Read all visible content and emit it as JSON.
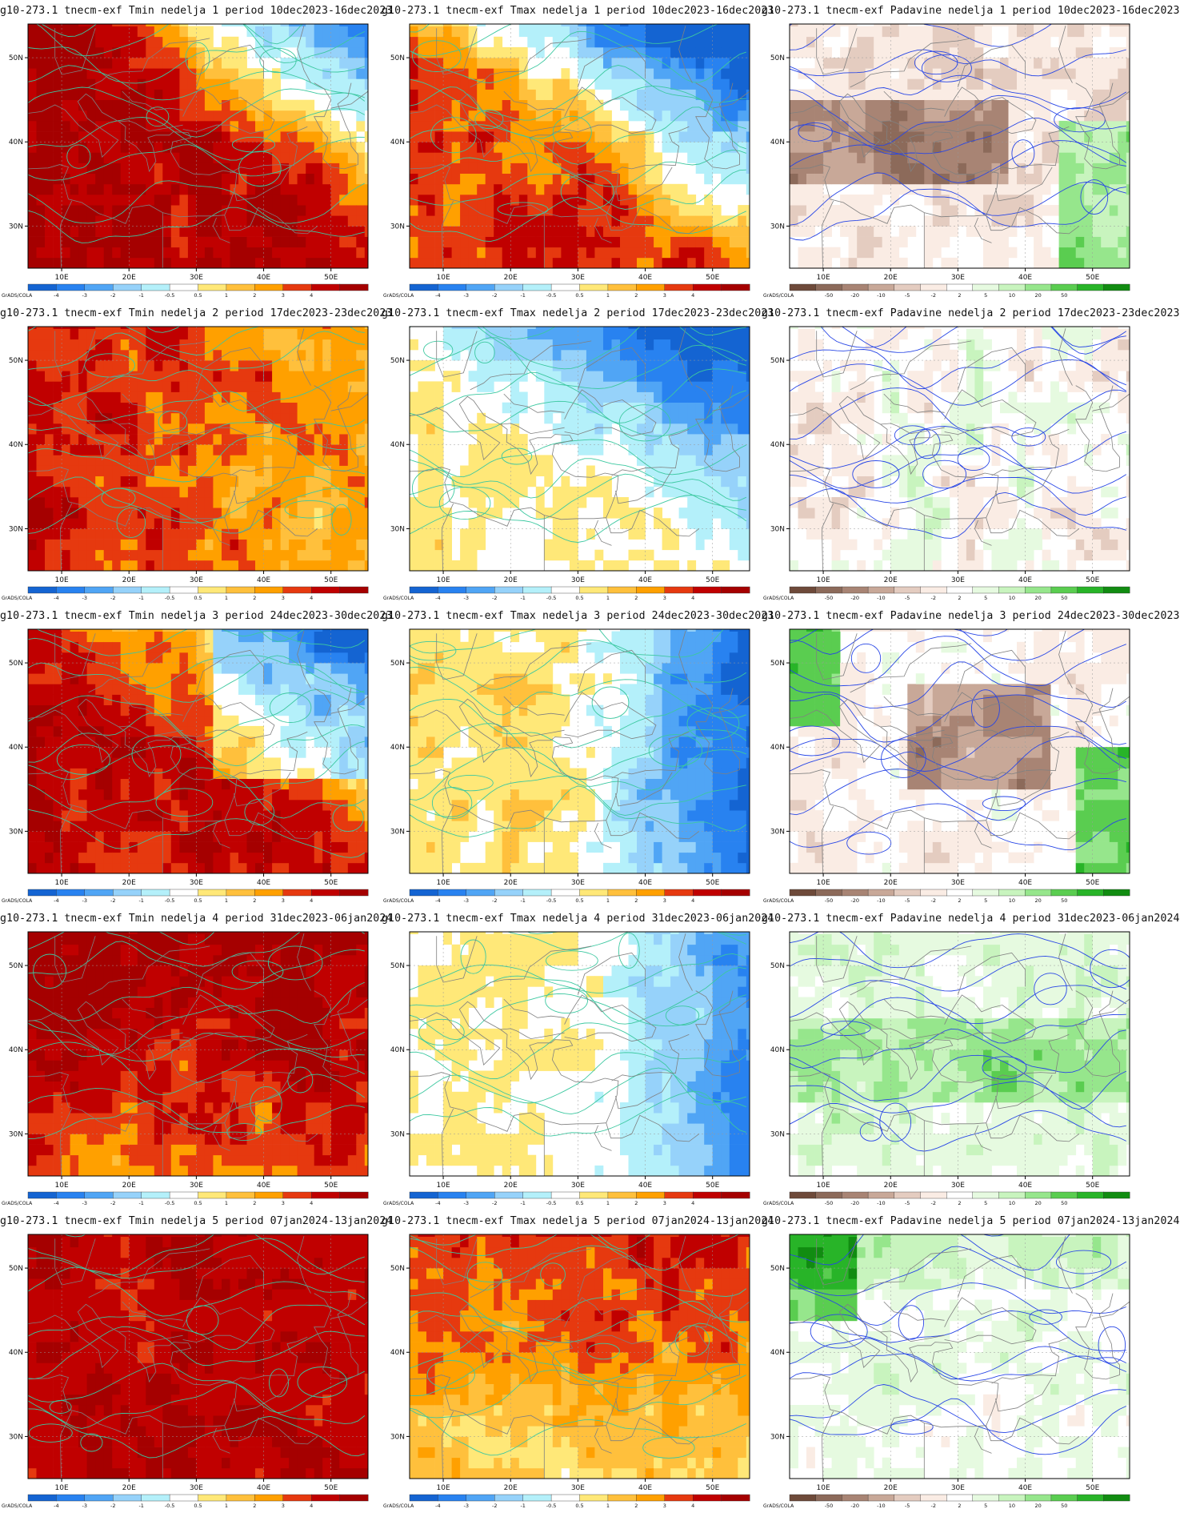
{
  "x_ticks": [
    "10E",
    "20E",
    "30E",
    "40E",
    "50E"
  ],
  "y_ticks": [
    "50N",
    "40N",
    "30N"
  ],
  "credit": "GrADS/COLA",
  "legends": {
    "temp": [
      "-4",
      "-3",
      "-2",
      "-1",
      "-0.5",
      "0.5",
      "1",
      "2",
      "3",
      "4"
    ],
    "precip": [
      "-50",
      "-20",
      "-10",
      "-5",
      "-2",
      "2",
      "5",
      "10",
      "20",
      "50"
    ]
  },
  "palettes": {
    "temp": [
      "#1464d2",
      "#2882f0",
      "#50a5f5",
      "#96d2fa",
      "#b4f0fa",
      "#ffffff",
      "#ffe878",
      "#ffc03c",
      "#ffa000",
      "#e6390f",
      "#c00000",
      "#a50000"
    ],
    "precip": [
      "#6e4a3a",
      "#8c6a5a",
      "#a88474",
      "#c8a898",
      "#e4ccc0",
      "#faece4",
      "#ffffff",
      "#e6fae0",
      "#c8f4be",
      "#96e68c",
      "#5acd50",
      "#28b428",
      "#118c11"
    ],
    "contour_temp": "#3cc8a0",
    "contour_precip": "#2846e6",
    "border": "#808080"
  },
  "rows": [
    {
      "period_label": "nedelja 1 period 10dec2023-16dec2023",
      "panels": [
        {
          "title": "g10-273.1 tnecm-exf Tmin nedelja 1 period 10dec2023-16dec2023",
          "variable": "Tmin",
          "pattern": "warm-strong-west-cold-ne"
        },
        {
          "title": "g10-273.1 tnecm-exf Tmax nedelja 1 period 10dec2023-16dec2023",
          "variable": "Tmax",
          "pattern": "warm-west-cold-ne"
        },
        {
          "title": "g10-273.1 tnecm-exf Padavine nedelja 1 period 10dec2023-16dec2023",
          "variable": "Padavine",
          "pattern": "dry-center-wet-east"
        }
      ]
    },
    {
      "period_label": "nedelja 2 period 17dec2023-23dec2023",
      "panels": [
        {
          "title": "g10-273.1 tnecm-exf Tmin nedelja 2 period 17dec2023-23dec2023",
          "variable": "Tmin",
          "pattern": "warm-strong-west"
        },
        {
          "title": "g10-273.1 tnecm-exf Tmax nedelja 2 period 17dec2023-23dec2023",
          "variable": "Tmax",
          "pattern": "cold-ne"
        },
        {
          "title": "g10-273.1 tnecm-exf Padavine nedelja 2 period 17dec2023-23dec2023",
          "variable": "Padavine",
          "pattern": "mixed"
        }
      ]
    },
    {
      "period_label": "nedelja 3 period 24dec2023-30dec2023",
      "panels": [
        {
          "title": "g10-273.1 tnecm-exf Tmin nedelja 3 period 24dec2023-30dec2023",
          "variable": "Tmin",
          "pattern": "warm-west-cool-ne"
        },
        {
          "title": "g10-273.1 tnecm-exf Tmax nedelja 3 period 24dec2023-30dec2023",
          "variable": "Tmax",
          "pattern": "cold-east"
        },
        {
          "title": "g10-273.1 tnecm-exf Padavine nedelja 3 period 24dec2023-30dec2023",
          "variable": "Padavine",
          "pattern": "dry-center-wet-west-east"
        }
      ]
    },
    {
      "period_label": "nedelja 4 period 31dec2023-06jan2024",
      "panels": [
        {
          "title": "g10-273.1 tnecm-exf Tmin nedelja 4 period 31dec2023-06jan2024",
          "variable": "Tmin",
          "pattern": "warm-strong-north"
        },
        {
          "title": "g10-273.1 tnecm-exf Tmax nedelja 4 period 31dec2023-06jan2024",
          "variable": "Tmax",
          "pattern": "cool-east"
        },
        {
          "title": "g10-273.1 tnecm-exf Padavine nedelja 4 period 31dec2023-06jan2024",
          "variable": "Padavine",
          "pattern": "wet-center"
        }
      ]
    },
    {
      "period_label": "nedelja 5 period 07jan2024-13jan2024",
      "panels": [
        {
          "title": "g10-273.1 tnecm-exf Tmin nedelja 5 period 07jan2024-13jan2024",
          "variable": "Tmin",
          "pattern": "warm-strong-all"
        },
        {
          "title": "g10-273.1 tnecm-exf Tmax nedelja 5 period 07jan2024-13jan2024",
          "variable": "Tmax",
          "pattern": "warm-north"
        },
        {
          "title": "g10-273.1 tnecm-exf Padavine nedelja 5 period 07jan2024-13jan2024",
          "variable": "Padavine",
          "pattern": "wet-west-north"
        }
      ]
    }
  ]
}
